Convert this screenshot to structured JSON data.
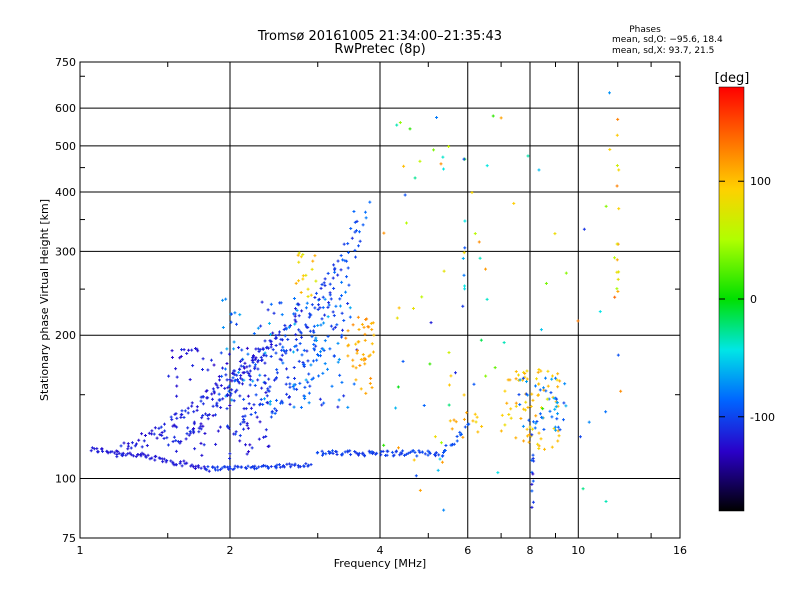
{
  "chart_data": {
    "type": "scatter",
    "title": "Tromsø 20161005 21:34:00–21:35:43",
    "subtitle": "RwPretec (8p)",
    "xlabel": "Frequency [MHz]",
    "ylabel": "Stationary phase Virtual Height [km]",
    "x_scale": "log",
    "y_scale": "log",
    "xlim": [
      1,
      16
    ],
    "ylim": [
      75,
      750
    ],
    "x_ticks": [
      1,
      2,
      4,
      6,
      8,
      10,
      16
    ],
    "x_tick_labels": [
      "1",
      "2",
      "4",
      "6",
      "8",
      "10",
      "16"
    ],
    "y_ticks": [
      75,
      100,
      200,
      300,
      400,
      500,
      600,
      750
    ],
    "y_tick_labels": [
      "75",
      "100",
      "200",
      "300",
      "400",
      "500",
      "600",
      "750"
    ],
    "grid": true,
    "phases_box": {
      "title": "Phases",
      "line1": "mean, sd,O: −95.6, 18.4",
      "line2": "mean, sd,X:  93.7, 21.5"
    },
    "colorbar": {
      "label": "[deg]",
      "range": [
        -180,
        180
      ],
      "ticks": [
        100,
        0,
        -100
      ],
      "tick_labels": [
        "100",
        "0",
        "-100"
      ],
      "colormap": "rainbow"
    },
    "clusters": [
      {
        "kind": "trace",
        "freq": [
          1.05,
          1.8
        ],
        "h": [
          115,
          105
        ],
        "ph": [
          -125,
          -115
        ],
        "jf": 0.01,
        "jh": 1.5
      },
      {
        "kind": "trace",
        "freq": [
          1.8,
          2.9
        ],
        "h": [
          105,
          107
        ],
        "ph": [
          -110,
          -100
        ],
        "jf": 0.01,
        "jh": 1.0
      },
      {
        "kind": "trace",
        "freq": [
          3.0,
          5.3
        ],
        "h": [
          113,
          113
        ],
        "ph": [
          -110,
          -95
        ],
        "jf": 0.01,
        "jh": 1.5
      },
      {
        "kind": "trace",
        "freq": [
          5.3,
          6.0
        ],
        "h": [
          113,
          130
        ],
        "ph": [
          -100,
          -90
        ],
        "jf": 0.01,
        "jh": 2.0
      },
      {
        "kind": "trace",
        "freq": [
          1.2,
          2.5
        ],
        "h": [
          115,
          200
        ],
        "ph": [
          -125,
          -105
        ],
        "jf": 0.02,
        "jh": 4.0
      },
      {
        "kind": "trace",
        "freq": [
          1.5,
          2.8
        ],
        "h": [
          118,
          230
        ],
        "ph": [
          -120,
          -105
        ],
        "jf": 0.02,
        "jh": 4.0
      },
      {
        "kind": "trace",
        "freq": [
          2.0,
          3.3
        ],
        "h": [
          125,
          290
        ],
        "ph": [
          -115,
          -95
        ],
        "jf": 0.02,
        "jh": 5.0
      },
      {
        "kind": "trace",
        "freq": [
          2.4,
          3.6
        ],
        "h": [
          135,
          360
        ],
        "ph": [
          -115,
          -85
        ],
        "jf": 0.02,
        "jh": 6.0
      },
      {
        "kind": "trace",
        "freq": [
          2.8,
          3.75
        ],
        "h": [
          150,
          380
        ],
        "ph": [
          -105,
          -75
        ],
        "jf": 0.02,
        "jh": 6.0
      },
      {
        "kind": "cloud",
        "freq": [
          1.9,
          3.6
        ],
        "h": [
          140,
          240
        ],
        "ph": [
          -120,
          -60
        ],
        "n": 160
      },
      {
        "kind": "cloud",
        "freq": [
          1.5,
          2.4
        ],
        "h": [
          110,
          190
        ],
        "ph": [
          -130,
          -110
        ],
        "n": 100
      },
      {
        "kind": "cloud",
        "freq": [
          3.4,
          3.9
        ],
        "h": [
          150,
          220
        ],
        "ph": [
          100,
          125
        ],
        "n": 45
      },
      {
        "kind": "cloud",
        "freq": [
          2.7,
          3.0
        ],
        "h": [
          240,
          300
        ],
        "ph": [
          70,
          110
        ],
        "n": 18
      },
      {
        "kind": "cloud",
        "freq": [
          7.0,
          9.2
        ],
        "h": [
          115,
          170
        ],
        "ph": [
          85,
          115
        ],
        "n": 70
      },
      {
        "kind": "cloud",
        "freq": [
          7.6,
          9.5
        ],
        "h": [
          125,
          165
        ],
        "ph": [
          -100,
          -60
        ],
        "n": 45
      },
      {
        "kind": "cloud",
        "freq": [
          5.5,
          6.4
        ],
        "h": [
          120,
          170
        ],
        "ph": [
          95,
          115
        ],
        "n": 14
      },
      {
        "kind": "cloud",
        "freq": [
          4.0,
          6.5
        ],
        "h": [
          85,
          600
        ],
        "ph": [
          -130,
          130
        ],
        "n": 45
      },
      {
        "kind": "cloud",
        "freq": [
          6.2,
          12.5
        ],
        "h": [
          80,
          650
        ],
        "ph": [
          -120,
          140
        ],
        "n": 40
      },
      {
        "kind": "vline",
        "freq": 12.0,
        "h": [
          240,
          620
        ],
        "ph": [
          40,
          130
        ],
        "n": 14
      },
      {
        "kind": "vline",
        "freq": 8.1,
        "h": [
          80,
          125
        ],
        "ph": [
          -130,
          -90
        ],
        "n": 12
      },
      {
        "kind": "vline",
        "freq": 5.9,
        "h": [
          250,
          470
        ],
        "ph": [
          -110,
          120
        ],
        "n": 9
      }
    ]
  }
}
